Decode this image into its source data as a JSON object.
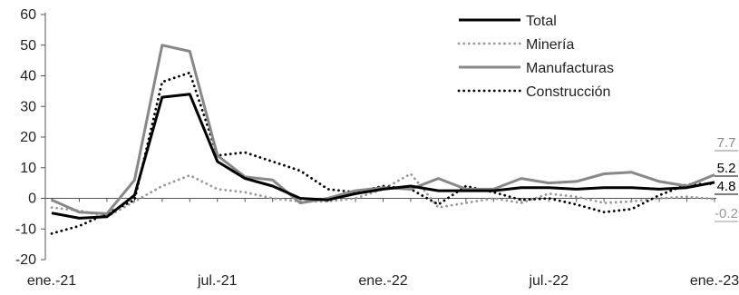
{
  "chart_data": {
    "type": "line",
    "title": "",
    "xlabel": "",
    "ylabel": "",
    "ylim": [
      -20,
      60
    ],
    "yticks": [
      -20,
      -10,
      0,
      10,
      20,
      30,
      40,
      50,
      60
    ],
    "grid": false,
    "legend_position": "top-right",
    "x": [
      "ene.-21",
      "feb.-21",
      "mar.-21",
      "abr.-21",
      "may.-21",
      "jun.-21",
      "jul.-21",
      "ago.-21",
      "sep.-21",
      "oct.-21",
      "nov.-21",
      "dic.-21",
      "ene.-22",
      "feb.-22",
      "mar.-22",
      "abr.-22",
      "may.-22",
      "jun.-22",
      "jul.-22",
      "ago.-22",
      "sep.-22",
      "oct.-22",
      "nov.-22",
      "dic.-22",
      "ene.-23"
    ],
    "xtick_labels": [
      {
        "index": 0,
        "label": "ene.-21"
      },
      {
        "index": 6,
        "label": "jul.-21"
      },
      {
        "index": 12,
        "label": "ene.-22"
      },
      {
        "index": 18,
        "label": "jul.-22"
      },
      {
        "index": 24,
        "label": "ene.-23"
      }
    ],
    "series": [
      {
        "name": "Total",
        "color": "#000000",
        "style": "solid",
        "values": [
          -4.8,
          -6.5,
          -6,
          1,
          33,
          34,
          12,
          6.5,
          4,
          0,
          -0.5,
          1.5,
          3,
          4,
          2.5,
          2.5,
          2.5,
          3.5,
          3.5,
          3,
          3.5,
          3.5,
          3,
          3.5,
          5.2
        ]
      },
      {
        "name": "Minería",
        "color": "#999999",
        "style": "dotted",
        "values": [
          -3,
          -4,
          -6,
          -1,
          4,
          7.5,
          3,
          2,
          0,
          -1,
          -1,
          0,
          3,
          8,
          -3,
          -1.5,
          0,
          -1.5,
          1.5,
          0.5,
          -1.5,
          -1,
          0,
          0.5,
          -0.2
        ]
      },
      {
        "name": "Manufacturas",
        "color": "#888888",
        "style": "solid",
        "values": [
          -0.5,
          -4.5,
          -5,
          6,
          50,
          48,
          14,
          7,
          6,
          -1.5,
          0,
          2.5,
          3.5,
          3,
          6.5,
          3,
          3,
          6.5,
          5,
          5.5,
          8,
          8.5,
          5.5,
          4,
          7.7
        ]
      },
      {
        "name": "Construcción",
        "color": "#000000",
        "style": "dotted",
        "values": [
          -11.5,
          -9,
          -5,
          -0.5,
          38,
          41,
          14,
          15,
          12,
          9,
          3,
          2,
          4,
          3,
          -2,
          4,
          2,
          -0.5,
          0,
          -2,
          -4.5,
          -3.5,
          1,
          4.5,
          4.8
        ]
      }
    ],
    "end_labels": [
      {
        "series": "Manufacturas",
        "text": "7.7",
        "color": "#888888"
      },
      {
        "series": "Total",
        "text": "5.2",
        "color": "#000000"
      },
      {
        "series": "Construcción",
        "text": "4.8",
        "color": "#000000"
      },
      {
        "series": "Minería",
        "text": "-0.2",
        "color": "#999999"
      }
    ]
  }
}
